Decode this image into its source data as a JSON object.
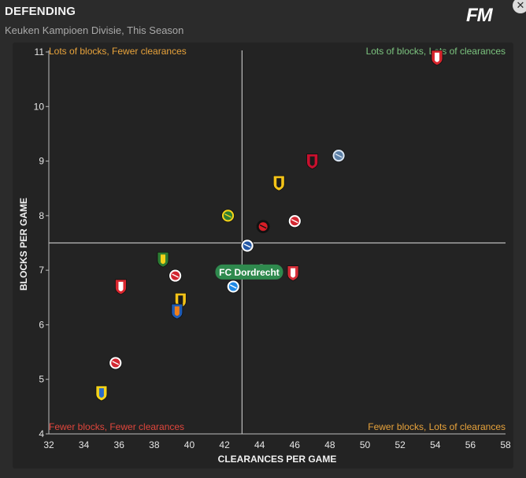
{
  "header": {
    "title": "DEFENDING",
    "subtitle": "Keuken Kampioen Divisie, This Season",
    "logo_text": "FM",
    "close_glyph": "✕"
  },
  "colors": {
    "grid": "#bdbdbd",
    "quadrant_top_left": "#e8a33b",
    "quadrant_top_right": "#7cc47f",
    "quadrant_bottom_left": "#e0463c",
    "quadrant_bottom_right": "#e8a33b",
    "highlight": "#2f8a4e"
  },
  "chart_data": {
    "type": "scatter",
    "title": "DEFENDING",
    "subtitle": "Keuken Kampioen Divisie, This Season",
    "xlabel": "CLEARANCES PER GAME",
    "ylabel": "BLOCKS PER GAME",
    "xlim": [
      32,
      58
    ],
    "ylim": [
      4,
      11
    ],
    "xticks": [
      32,
      34,
      36,
      38,
      40,
      42,
      44,
      46,
      48,
      50,
      52,
      54,
      56,
      58
    ],
    "yticks": [
      4,
      5,
      6,
      7,
      8,
      9,
      10,
      11
    ],
    "reference_lines": {
      "x": 43,
      "y": 7.5
    },
    "quadrants": {
      "top_left": "Lots of blocks, Fewer clearances",
      "top_right": "Lots of blocks, Lots of clearances",
      "bottom_left": "Fewer blocks, Fewer clearances",
      "bottom_right": "Fewer blocks, Lots of clearances"
    },
    "highlight": {
      "label": "FC Dordrecht",
      "x": 42.6,
      "y": 6.7
    },
    "points": [
      {
        "x": 54.1,
        "y": 10.9,
        "shape": "shield",
        "c1": "#d8262e",
        "c2": "#ffffff"
      },
      {
        "x": 48.5,
        "y": 9.1,
        "shape": "circle",
        "c1": "#5b7fa6",
        "c2": "#d8e3ef"
      },
      {
        "x": 47.0,
        "y": 9.0,
        "shape": "shield",
        "c1": "#c8102e",
        "c2": "#1b1b1b"
      },
      {
        "x": 45.1,
        "y": 8.6,
        "shape": "shield",
        "c1": "#f3c318",
        "c2": "#1b1b1b"
      },
      {
        "x": 42.2,
        "y": 8.0,
        "shape": "circle",
        "c1": "#2e7d32",
        "c2": "#f3d21a"
      },
      {
        "x": 46.0,
        "y": 7.9,
        "shape": "circle",
        "c1": "#d22630",
        "c2": "#ffffff"
      },
      {
        "x": 44.2,
        "y": 7.8,
        "shape": "circle",
        "c1": "#d81e27",
        "c2": "#111111"
      },
      {
        "x": 43.3,
        "y": 7.45,
        "shape": "circle",
        "c1": "#2458a6",
        "c2": "#ffffff"
      },
      {
        "x": 38.5,
        "y": 7.2,
        "shape": "shield",
        "c1": "#2e7d32",
        "c2": "#f3d21a"
      },
      {
        "x": 44.1,
        "y": 7.0,
        "shape": "circle",
        "c1": "#c41e2a",
        "c2": "#ffffff"
      },
      {
        "x": 45.9,
        "y": 6.95,
        "shape": "shield",
        "c1": "#d42d37",
        "c2": "#ffffff"
      },
      {
        "x": 39.2,
        "y": 6.9,
        "shape": "circle",
        "c1": "#d22630",
        "c2": "#ffffff"
      },
      {
        "x": 36.1,
        "y": 6.7,
        "shape": "shield",
        "c1": "#d8262e",
        "c2": "#ffffff"
      },
      {
        "x": 42.5,
        "y": 6.7,
        "shape": "circle",
        "c1": "#1e88e5",
        "c2": "#ffffff"
      },
      {
        "x": 39.5,
        "y": 6.45,
        "shape": "shield",
        "c1": "#f3c318",
        "c2": "#1b1b1b"
      },
      {
        "x": 39.3,
        "y": 6.25,
        "shape": "shield",
        "c1": "#1e5bb5",
        "c2": "#f07f1a"
      },
      {
        "x": 35.8,
        "y": 5.3,
        "shape": "circle",
        "c1": "#d22630",
        "c2": "#ffffff"
      },
      {
        "x": 35.0,
        "y": 4.75,
        "shape": "shield",
        "c1": "#f3d21a",
        "c2": "#2b6bc9"
      }
    ]
  }
}
